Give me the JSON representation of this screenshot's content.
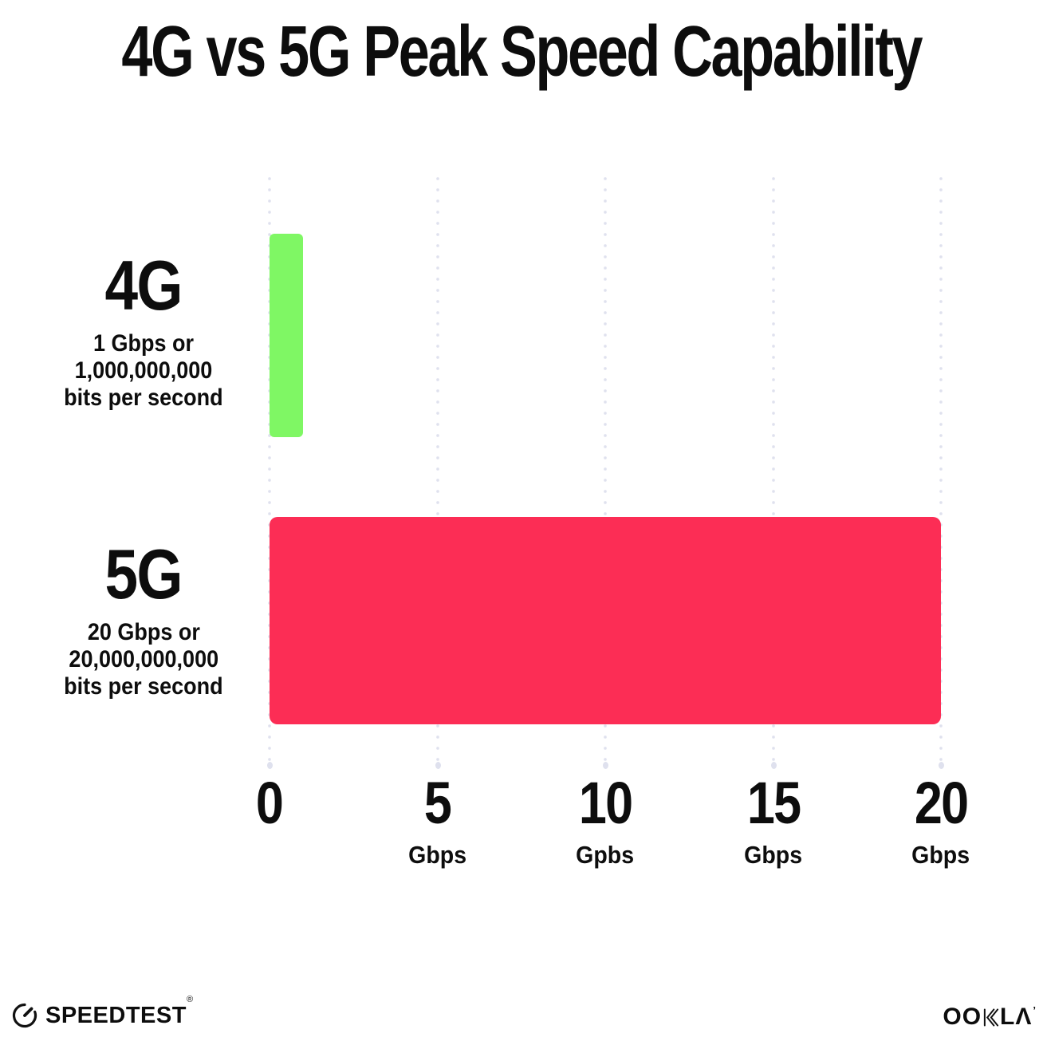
{
  "title": "4G vs 5G Peak Speed Capability",
  "chart_data": {
    "type": "bar",
    "orientation": "horizontal",
    "title": "4G vs 5G Peak Speed Capability",
    "categories": [
      "4G",
      "5G"
    ],
    "values": [
      1,
      20
    ],
    "value_unit": "Gbps",
    "xlim": [
      0,
      20
    ],
    "x_tick_step": 5,
    "grid": "vertical-dotted",
    "legend": "none",
    "series": [
      {
        "label": "4G",
        "value": 1,
        "color": "#7FF764",
        "sublabel_lines": [
          "1 Gbps or",
          "1,000,000,000",
          "bits per second"
        ]
      },
      {
        "label": "5G",
        "value": 20,
        "color": "#FC2D55",
        "sublabel_lines": [
          "20 Gbps or",
          "20,000,000,000",
          "bits per second"
        ]
      }
    ],
    "x_ticks": [
      {
        "value": "0",
        "unit": ""
      },
      {
        "value": "5",
        "unit": "Gbps"
      },
      {
        "value": "10",
        "unit": "Gpbs"
      },
      {
        "value": "15",
        "unit": "Gbps"
      },
      {
        "value": "20",
        "unit": "Gbps"
      }
    ]
  },
  "footer": {
    "speedtest_label": "SPEEDTEST",
    "speedtest_mark": "®",
    "ookla_label": "OOKLA",
    "ookla_oo": "OO",
    "ookla_la": "LΛ",
    "ookla_mark": "’"
  },
  "colors": {
    "text": "#0d0d0d",
    "grid_dot": "#dfe1ee",
    "bar_4g": "#7FF764",
    "bar_5g": "#FC2D55",
    "background": "#ffffff"
  }
}
